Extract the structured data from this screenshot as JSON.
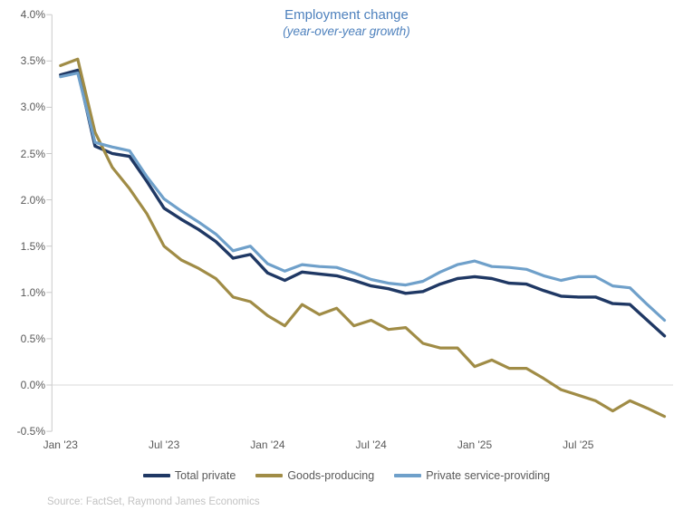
{
  "title": "Employment change",
  "subtitle": "(year-over-year growth)",
  "source": "Source: FactSet, Raymond James Economics",
  "colors": {
    "title_blue": "#4e81bd",
    "axis_text": "#595959",
    "axis_line": "#c9c9c9",
    "gridline": "#d9d9d9",
    "source_text": "#c3c3c3",
    "total_private": "#1f3864",
    "goods_producing": "#a08c46",
    "private_service": "#6fa0ca"
  },
  "chart_data": {
    "type": "line",
    "title": "Employment change",
    "subtitle": "(year-over-year growth)",
    "x_frequency": "monthly",
    "x": [
      "Jan '23",
      "Feb '23",
      "Mar '23",
      "Apr '23",
      "May '23",
      "Jun '23",
      "Jul '23",
      "Aug '23",
      "Sep '23",
      "Oct '23",
      "Nov '23",
      "Dec '23",
      "Jan '24",
      "Feb '24",
      "Mar '24",
      "Apr '24",
      "May '24",
      "Jun '24",
      "Jul '24",
      "Aug '24",
      "Sep '24",
      "Oct '24",
      "Nov '24",
      "Dec '24",
      "Jan '25",
      "Feb '25",
      "Mar '25",
      "Apr '25",
      "May '25",
      "Jun '25",
      "Jul '25",
      "Aug '25",
      "Sep '25",
      "Oct '25",
      "Nov '25",
      "Dec '25"
    ],
    "x_tick_labels": [
      "Jan '23",
      "Jul '23",
      "Jan '24",
      "Jul '24",
      "Jan '25",
      "Jul '25"
    ],
    "ylim": [
      -0.5,
      4.0
    ],
    "ytick_step": 0.5,
    "ytick_labels": [
      "4.0%",
      "3.5%",
      "3.0%",
      "2.5%",
      "2.0%",
      "1.5%",
      "1.0%",
      "0.5%",
      "0.0%",
      "-0.5%"
    ],
    "grid": "horizontal zero line only",
    "legend_position": "bottom",
    "unit": "percent",
    "series": [
      {
        "name": "Total private",
        "color": "#1f3864",
        "values": [
          3.35,
          3.4,
          2.58,
          2.5,
          2.47,
          2.2,
          1.91,
          1.79,
          1.68,
          1.55,
          1.37,
          1.41,
          1.21,
          1.13,
          1.22,
          1.2,
          1.18,
          1.13,
          1.07,
          1.04,
          0.99,
          1.01,
          1.09,
          1.15,
          1.17,
          1.15,
          1.1,
          1.09,
          1.02,
          0.96,
          0.95,
          0.95,
          0.88,
          0.87,
          0.7,
          0.53
        ]
      },
      {
        "name": "Goods-producing",
        "color": "#a08c46",
        "values": [
          3.45,
          3.52,
          2.73,
          2.35,
          2.12,
          1.85,
          1.5,
          1.35,
          1.26,
          1.15,
          0.95,
          0.9,
          0.75,
          0.64,
          0.87,
          0.76,
          0.83,
          0.64,
          0.7,
          0.6,
          0.62,
          0.45,
          0.4,
          0.4,
          0.2,
          0.27,
          0.18,
          0.18,
          0.07,
          -0.05,
          -0.11,
          -0.17,
          -0.28,
          -0.17,
          -0.25,
          -0.34
        ]
      },
      {
        "name": "Private service-providing",
        "color": "#6fa0ca",
        "values": [
          3.33,
          3.37,
          2.62,
          2.57,
          2.53,
          2.25,
          2.01,
          1.88,
          1.76,
          1.63,
          1.45,
          1.5,
          1.31,
          1.23,
          1.3,
          1.28,
          1.27,
          1.21,
          1.14,
          1.1,
          1.08,
          1.12,
          1.22,
          1.3,
          1.34,
          1.28,
          1.27,
          1.25,
          1.18,
          1.13,
          1.17,
          1.17,
          1.07,
          1.05,
          0.87,
          0.7
        ]
      }
    ]
  }
}
